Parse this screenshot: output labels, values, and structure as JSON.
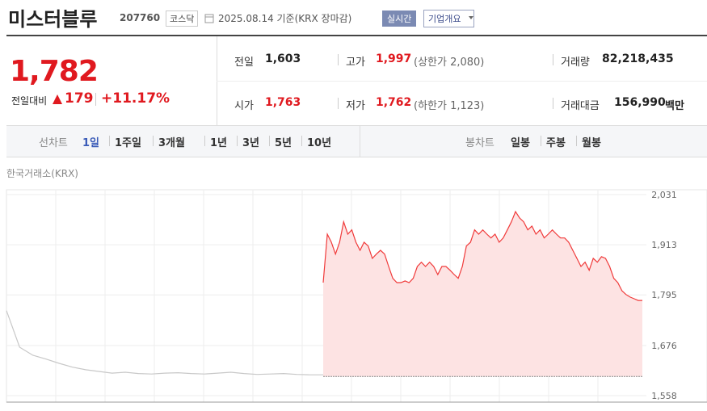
{
  "header": {
    "name": "미스터블루",
    "code": "207760",
    "market": "코스닥",
    "date": "2025.08.14 기준(KRX 장마감)",
    "realtime_button": "실시간",
    "company_button": "기업개요"
  },
  "price": {
    "current": "1,782",
    "change_label": "전일대비",
    "change": "179",
    "change_rate": "+11.17%"
  },
  "table": {
    "prev_close_label": "전일",
    "prev_close": "1,603",
    "high_label": "고가",
    "high": "1,997",
    "upper_limit": "(상한가 2,080)",
    "volume_label": "거래량",
    "volume": "82,218,435",
    "open_label": "시가",
    "open": "1,763",
    "low_label": "저가",
    "low": "1,762",
    "lower_limit": "(하한가 1,123)",
    "amount_label": "거래대금",
    "amount": "156,990",
    "amount_unit": "백만"
  },
  "tabs": {
    "line_label": "선차트",
    "line_periods": [
      "1일",
      "1주일",
      "3개월",
      "1년",
      "3년",
      "5년",
      "10년"
    ],
    "candle_label": "봉차트",
    "candle_periods": [
      "일봉",
      "주봉",
      "월봉"
    ]
  },
  "chart": {
    "type": "line",
    "source": "한국거래소(KRX)",
    "ylim": [
      1558,
      2031
    ],
    "yticks": [
      {
        "value": 2031,
        "label": "2,031"
      },
      {
        "value": 1913,
        "label": "1,913"
      },
      {
        "value": 1795,
        "label": "1,795"
      },
      {
        "value": 1676,
        "label": "1,676"
      },
      {
        "value": 1558,
        "label": "1,558"
      }
    ],
    "baseline": 1603,
    "series": [
      {
        "color": "#c8c8c8",
        "values": [
          1758,
          1672,
          1653,
          1644,
          1634,
          1625,
          1619,
          1615,
          1611,
          1613,
          1610,
          1609,
          1611,
          1612,
          1610,
          1609,
          1611,
          1613,
          1610,
          1608,
          1609,
          1610,
          1608,
          1607,
          1607
        ]
      },
      {
        "color": "#f03a3a",
        "fill": "#fde3e3",
        "values": [
          1824,
          1938,
          1919,
          1891,
          1919,
          1967,
          1938,
          1948,
          1919,
          1900,
          1919,
          1910,
          1881,
          1891,
          1900,
          1891,
          1862,
          1834,
          1824,
          1824,
          1828,
          1824,
          1834,
          1862,
          1872,
          1862,
          1872,
          1862,
          1843,
          1862,
          1862,
          1853,
          1843,
          1834,
          1862,
          1910,
          1919,
          1948,
          1938,
          1948,
          1938,
          1929,
          1938,
          1919,
          1929,
          1948,
          1967,
          1991,
          1976,
          1967,
          1948,
          1957,
          1938,
          1948,
          1929,
          1938,
          1948,
          1938,
          1929,
          1929,
          1919,
          1900,
          1881,
          1862,
          1872,
          1853,
          1881,
          1872,
          1885,
          1881,
          1862,
          1834,
          1824,
          1805,
          1796,
          1790,
          1786,
          1782,
          1782
        ]
      }
    ]
  }
}
